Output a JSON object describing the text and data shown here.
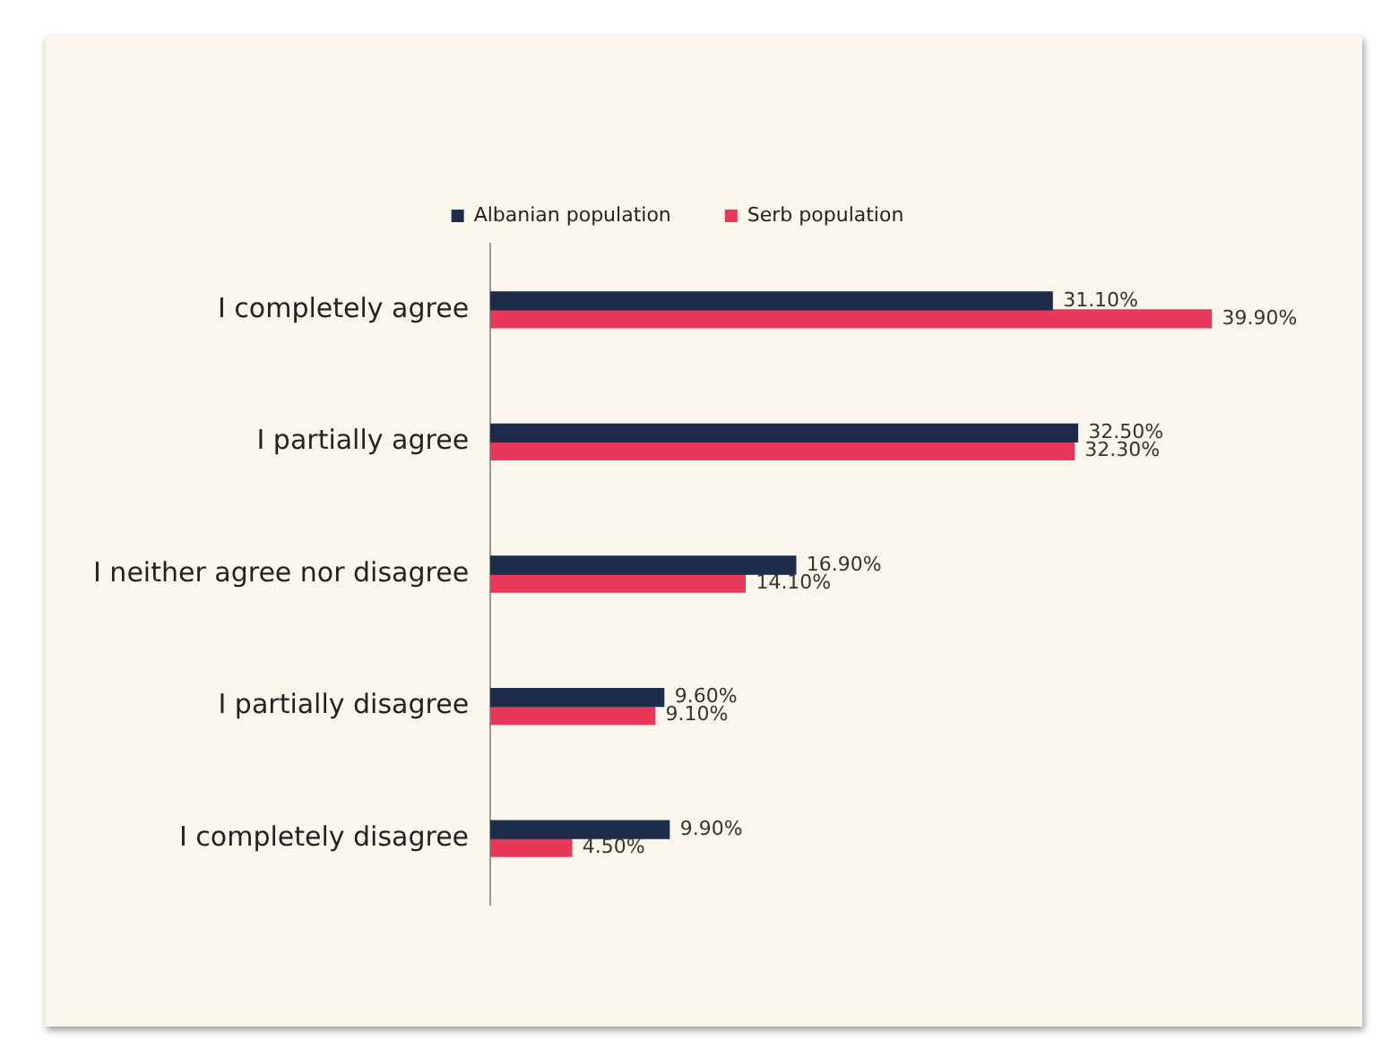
{
  "chart_data": {
    "type": "bar",
    "orientation": "horizontal",
    "categories": [
      "I completely agree",
      "I partially agree",
      "I neither agree nor disagree",
      "I partially disagree",
      "I completely disagree"
    ],
    "series": [
      {
        "name": "Albanian population",
        "color": "#1c2c4a",
        "values": [
          31.1,
          32.5,
          16.9,
          9.6,
          9.9
        ],
        "value_labels": [
          "31.10%",
          "32.50%",
          "16.90%",
          "9.60%",
          "9.90%"
        ]
      },
      {
        "name": "Serb population",
        "color": "#e8385a",
        "values": [
          39.9,
          32.3,
          14.1,
          9.1,
          4.5
        ],
        "value_labels": [
          "39.90%",
          "32.30%",
          "14.10%",
          "9.10%",
          "4.50%"
        ]
      }
    ],
    "legend": "top",
    "tick_labels": "y"
  }
}
